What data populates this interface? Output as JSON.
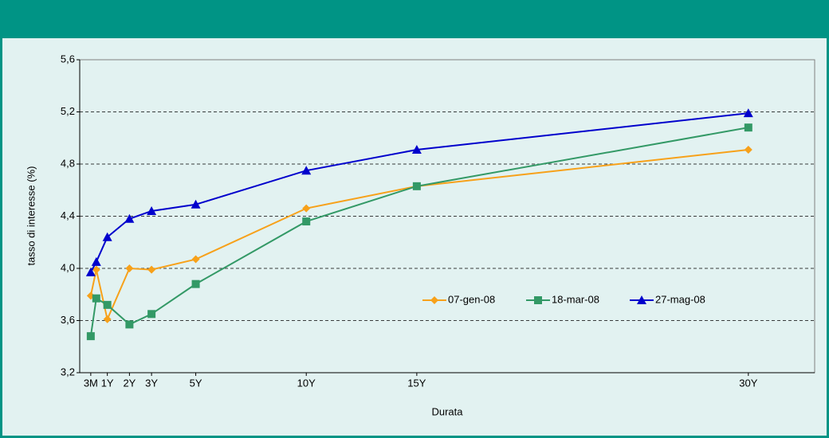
{
  "chart_data": {
    "type": "line",
    "x": [
      0.25,
      0.5,
      1,
      2,
      3,
      5,
      10,
      15,
      30
    ],
    "xlabel": "Durata",
    "ylabel": "tasso di interesse (%)",
    "xlim": [
      -0.25,
      33
    ],
    "xticks": [
      {
        "value": 0.25,
        "label": "3M"
      },
      {
        "value": 1,
        "label": "1Y"
      },
      {
        "value": 2,
        "label": "2Y"
      },
      {
        "value": 3,
        "label": "3Y"
      },
      {
        "value": 5,
        "label": "5Y"
      },
      {
        "value": 10,
        "label": "10Y"
      },
      {
        "value": 15,
        "label": "15Y"
      },
      {
        "value": 30,
        "label": "30Y"
      }
    ],
    "ylim": [
      3.2,
      5.6
    ],
    "yticks": [
      {
        "value": 3.2,
        "label": "3,2"
      },
      {
        "value": 3.6,
        "label": "3,6"
      },
      {
        "value": 4.0,
        "label": "4,0"
      },
      {
        "value": 4.4,
        "label": "4,4"
      },
      {
        "value": 4.8,
        "label": "4,8"
      },
      {
        "value": 5.2,
        "label": "5,2"
      },
      {
        "value": 5.6,
        "label": "5,6"
      }
    ],
    "grid": true,
    "series": [
      {
        "name": "07-gen-08",
        "color": "#f7a11a",
        "marker": "diamond",
        "values": [
          3.79,
          3.99,
          3.61,
          4.0,
          3.99,
          4.07,
          4.46,
          4.63,
          4.91
        ]
      },
      {
        "name": "18-mar-08",
        "color": "#339966",
        "marker": "square",
        "values": [
          3.48,
          3.77,
          3.72,
          3.57,
          3.65,
          3.88,
          4.36,
          4.63,
          5.08
        ]
      },
      {
        "name": "27-mag-08",
        "color": "#0000cc",
        "marker": "triangle",
        "values": [
          3.97,
          4.05,
          4.24,
          4.38,
          4.44,
          4.49,
          4.75,
          4.91,
          5.19
        ]
      }
    ]
  }
}
